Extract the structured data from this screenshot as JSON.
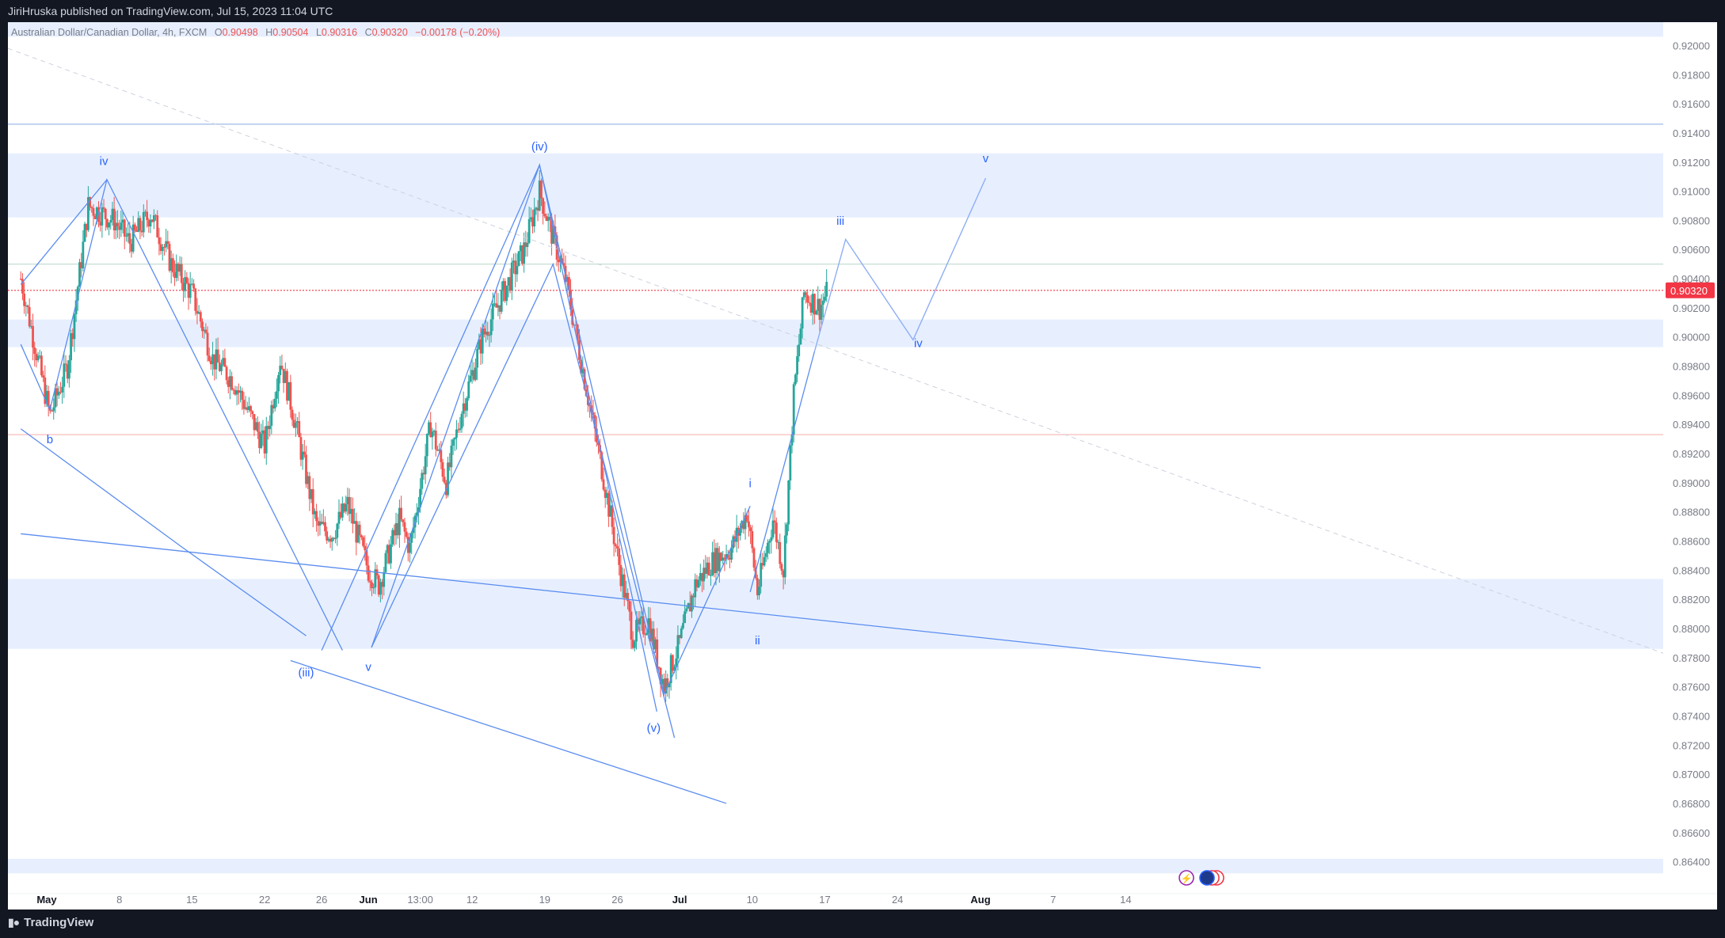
{
  "header": {
    "published_text": "JiriHruska published on TradingView.com, Jul 15, 2023 11:04 UTC"
  },
  "legend": {
    "symbol": "Australian Dollar/Canadian Dollar, 4h, FXCM",
    "open_label": "O",
    "open": "0.90498",
    "high_label": "H",
    "high": "0.90504",
    "low_label": "L",
    "low": "0.90316",
    "close_label": "C",
    "close": "0.90320",
    "change": "−0.00178 (−0.20%)"
  },
  "footer": {
    "brand": "TradingView"
  },
  "colors": {
    "up": "#26a69a",
    "down": "#ef5350",
    "wave": "#5b8def",
    "zone": "#e7efff",
    "price_tag": "#f23645",
    "frame": "#131722"
  },
  "chart_data": {
    "type": "candlestick",
    "symbol": "AUDCAD",
    "timeframe": "4h",
    "ylim": [
      0.863,
      0.9216
    ],
    "y_ticks": [
      "0.92000",
      "0.91800",
      "0.91600",
      "0.91400",
      "0.91200",
      "0.91000",
      "0.90800",
      "0.90600",
      "0.90400",
      "0.90200",
      "0.90000",
      "0.89800",
      "0.89600",
      "0.89400",
      "0.89200",
      "0.89000",
      "0.88800",
      "0.88600",
      "0.88400",
      "0.88200",
      "0.88000",
      "0.87800",
      "0.87600",
      "0.87400",
      "0.87200",
      "0.87000",
      "0.86800",
      "0.86600",
      "0.86400"
    ],
    "x_ticks": [
      {
        "label": "May",
        "day": 0,
        "bold": true
      },
      {
        "label": "8",
        "day": 7
      },
      {
        "label": "15",
        "day": 14
      },
      {
        "label": "22",
        "day": 21
      },
      {
        "label": "26",
        "day": 26.5
      },
      {
        "label": "Jun",
        "day": 31,
        "bold": true
      },
      {
        "label": "13:00",
        "day": 36
      },
      {
        "label": "12",
        "day": 41
      },
      {
        "label": "19",
        "day": 48
      },
      {
        "label": "26",
        "day": 55
      },
      {
        "label": "Jul",
        "day": 61,
        "bold": true
      },
      {
        "label": "10",
        "day": 68
      },
      {
        "label": "17",
        "day": 75
      },
      {
        "label": "24",
        "day": 82
      },
      {
        "label": "Aug",
        "day": 90,
        "bold": true
      },
      {
        "label": "7",
        "day": 97
      },
      {
        "label": "14",
        "day": 104
      }
    ],
    "last_price": "0.90320",
    "pivots": [
      {
        "day": -2.5,
        "price": 0.904
      },
      {
        "day": 0.3,
        "price": 0.8946
      },
      {
        "day": 2,
        "price": 0.898
      },
      {
        "day": 4,
        "price": 0.909
      },
      {
        "day": 6.5,
        "price": 0.908
      },
      {
        "day": 8,
        "price": 0.9065
      },
      {
        "day": 10,
        "price": 0.9085
      },
      {
        "day": 12,
        "price": 0.905
      },
      {
        "day": 14,
        "price": 0.903
      },
      {
        "day": 16,
        "price": 0.8985
      },
      {
        "day": 18,
        "price": 0.897
      },
      {
        "day": 21,
        "price": 0.8925
      },
      {
        "day": 22.5,
        "price": 0.8985
      },
      {
        "day": 24,
        "price": 0.894
      },
      {
        "day": 26,
        "price": 0.887
      },
      {
        "day": 27.5,
        "price": 0.8865
      },
      {
        "day": 29,
        "price": 0.8885
      },
      {
        "day": 31,
        "price": 0.884
      },
      {
        "day": 32,
        "price": 0.883
      },
      {
        "day": 34,
        "price": 0.8875
      },
      {
        "day": 35,
        "price": 0.8855
      },
      {
        "day": 37,
        "price": 0.894
      },
      {
        "day": 38.5,
        "price": 0.89
      },
      {
        "day": 40,
        "price": 0.895
      },
      {
        "day": 42,
        "price": 0.9
      },
      {
        "day": 44,
        "price": 0.903
      },
      {
        "day": 46,
        "price": 0.906
      },
      {
        "day": 47.5,
        "price": 0.91
      },
      {
        "day": 48.5,
        "price": 0.9075
      },
      {
        "day": 50,
        "price": 0.904
      },
      {
        "day": 52,
        "price": 0.8965
      },
      {
        "day": 53.5,
        "price": 0.891
      },
      {
        "day": 55,
        "price": 0.885
      },
      {
        "day": 56.5,
        "price": 0.8795
      },
      {
        "day": 58,
        "price": 0.8805
      },
      {
        "day": 59.5,
        "price": 0.876
      },
      {
        "day": 61,
        "price": 0.879
      },
      {
        "day": 62.5,
        "price": 0.883
      },
      {
        "day": 64,
        "price": 0.8845
      },
      {
        "day": 66,
        "price": 0.8855
      },
      {
        "day": 67.5,
        "price": 0.888
      },
      {
        "day": 68.5,
        "price": 0.8825
      },
      {
        "day": 70,
        "price": 0.8875
      },
      {
        "day": 71,
        "price": 0.884
      },
      {
        "day": 72,
        "price": 0.896
      },
      {
        "day": 73,
        "price": 0.903
      },
      {
        "day": 74.5,
        "price": 0.902
      },
      {
        "day": 75.3,
        "price": 0.9032
      }
    ],
    "zones": [
      {
        "from": 0.9082,
        "to": 0.9126
      },
      {
        "from": 0.8993,
        "to": 0.9012
      },
      {
        "from": 0.8786,
        "to": 0.8834
      },
      {
        "from": 0.8632,
        "to": 0.8642
      },
      {
        "from": 0.9206,
        "to": 0.9216
      }
    ],
    "hlines": [
      {
        "price": 0.9146,
        "style": "solid",
        "color": "#9fb8e8"
      },
      {
        "price": 0.905,
        "style": "solid",
        "color": "#c5ddd0"
      },
      {
        "price": 0.9032,
        "style": "dotted",
        "color": "#f23645"
      },
      {
        "price": 0.8933,
        "style": "solid",
        "color": "#f8b4b4"
      }
    ],
    "wave_labels": [
      {
        "text": "iv",
        "day": 5.5,
        "price": 0.9118
      },
      {
        "text": "b",
        "day": 0.3,
        "price": 0.8927
      },
      {
        "text": "(iii)",
        "day": 25,
        "price": 0.8767
      },
      {
        "text": "v",
        "day": 31,
        "price": 0.8771
      },
      {
        "text": "(iv)",
        "day": 47.5,
        "price": 0.9128
      },
      {
        "text": "(v)",
        "day": 58.5,
        "price": 0.8729
      },
      {
        "text": "i",
        "day": 67.8,
        "price": 0.8897
      },
      {
        "text": "ii",
        "day": 68.5,
        "price": 0.8789
      },
      {
        "text": "iii",
        "day": 76.5,
        "price": 0.9077
      },
      {
        "text": "iv",
        "day": 84,
        "price": 0.8993
      },
      {
        "text": "v",
        "day": 90.5,
        "price": 0.912
      }
    ],
    "projection": [
      {
        "day": 74,
        "price": 0.899
      },
      {
        "day": 77,
        "price": 0.9067
      },
      {
        "day": 83.5,
        "price": 0.8998
      },
      {
        "day": 90.5,
        "price": 0.9109
      }
    ]
  }
}
